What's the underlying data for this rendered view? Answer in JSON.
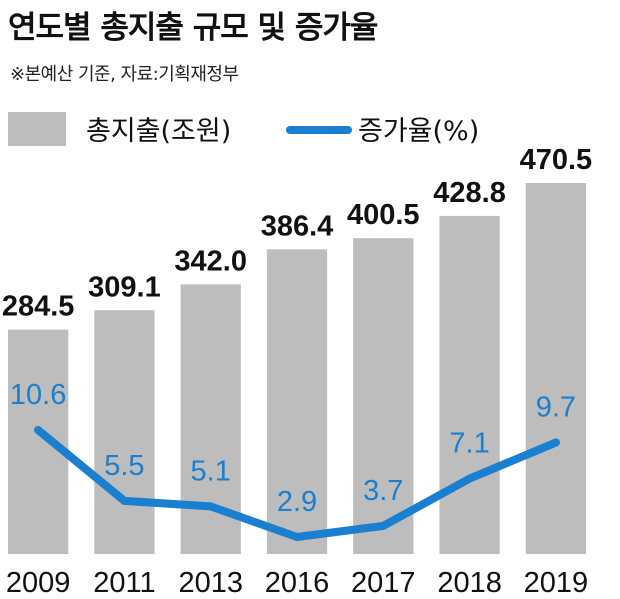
{
  "title": "연도별 총지출 규모 및 증가율",
  "subtitle": "※본예산 기준, 자료:기획재정부",
  "colors": {
    "bar": "#bdbdbd",
    "line": "#1a7fcf",
    "text": "#111111"
  },
  "chart_data": {
    "type": "bar",
    "categories": [
      "2009",
      "2011",
      "2013",
      "2016",
      "2017",
      "2018",
      "2019"
    ],
    "series": [
      {
        "name": "총지출(조원)",
        "type": "bar",
        "values": [
          284.5,
          309.1,
          342.0,
          386.4,
          400.5,
          428.8,
          470.5
        ],
        "labels": [
          "284.5",
          "309.1",
          "342.0",
          "386.4",
          "400.5",
          "428.8",
          "470.5"
        ]
      },
      {
        "name": "증가율(%)",
        "type": "line",
        "values": [
          10.6,
          5.5,
          5.1,
          2.9,
          3.7,
          7.1,
          9.7
        ],
        "labels": [
          "10.6",
          "5.5",
          "5.1",
          "2.9",
          "3.7",
          "7.1",
          "9.7"
        ]
      }
    ],
    "legend": "top-left",
    "grid": false
  }
}
